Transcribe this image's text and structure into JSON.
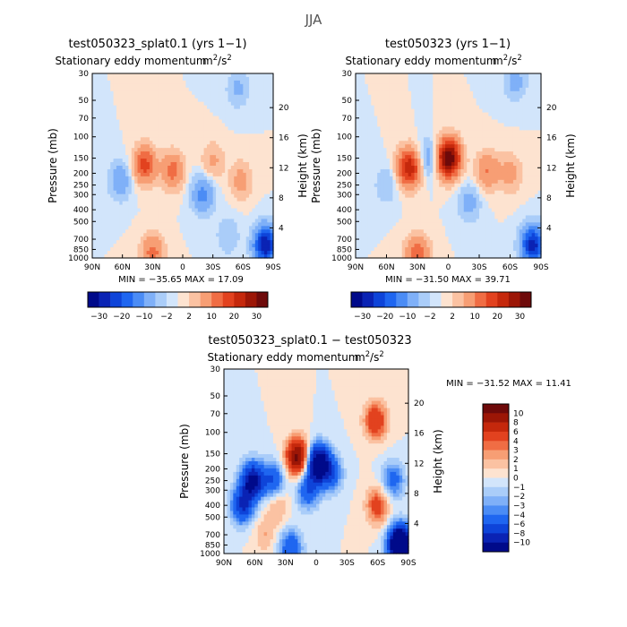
{
  "chart_data": {
    "type": "heatmap",
    "title": "JJA",
    "subtitle": "Stationary eddy momentum",
    "units": "m²/s²",
    "units_base": "m",
    "units_num_exp": "2",
    "units_den": "s",
    "units_den_exp": "2",
    "panels": [
      {
        "title": "test050323_splat0.1 (yrs 1−1)",
        "subtitle": "Stationary eddy momentum",
        "xlabel": "",
        "ylabel_left": "Pressure (mb)",
        "ylabel_right": "Height (km)",
        "x_ticks": [
          "90N",
          "60N",
          "30N",
          "0",
          "30S",
          "60S",
          "90S"
        ],
        "pressure_ticks": [
          "30",
          "50",
          "70",
          "100",
          "150",
          "200",
          "250",
          "300",
          "400",
          "500",
          "700",
          "850",
          "1000"
        ],
        "height_ticks": [
          "20",
          "16",
          "12",
          "8",
          "4"
        ],
        "min_label": "MIN = −35.65",
        "max_label": "MAX = 17.09",
        "min": -35.65,
        "max": 17.09,
        "levels": [
          "−30",
          "−20",
          "−10",
          "−2",
          "2",
          "10",
          "20",
          "30"
        ],
        "blobs": [
          {
            "lat": 38,
            "p": 170,
            "v": 17
          },
          {
            "lat": 10,
            "p": 190,
            "v": 12
          },
          {
            "lat": -30,
            "p": 160,
            "v": 6
          },
          {
            "lat": -58,
            "p": 230,
            "v": 7
          },
          {
            "lat": 30,
            "p": 920,
            "v": 12
          },
          {
            "lat": -20,
            "p": 300,
            "v": -12
          },
          {
            "lat": 62,
            "p": 230,
            "v": -9
          },
          {
            "lat": -55,
            "p": 40,
            "v": -6
          },
          {
            "lat": -45,
            "p": 650,
            "v": -5
          },
          {
            "lat": -82,
            "p": 780,
            "v": -30
          }
        ]
      },
      {
        "title": "test050323 (yrs 1−1)",
        "subtitle": "Stationary eddy momentum",
        "xlabel": "",
        "ylabel_left": "Pressure (mb)",
        "ylabel_right": "Height (km)",
        "x_ticks": [
          "90N",
          "60N",
          "30N",
          "0",
          "30S",
          "60S",
          "90S"
        ],
        "pressure_ticks": [
          "30",
          "50",
          "70",
          "100",
          "150",
          "200",
          "250",
          "300",
          "400",
          "500",
          "700",
          "850",
          "1000"
        ],
        "height_ticks": [
          "20",
          "16",
          "12",
          "8",
          "4"
        ],
        "min_label": "MIN = −31.50",
        "max_label": "MAX = 39.71",
        "min": -31.5,
        "max": 39.71,
        "levels": [
          "−30",
          "−20",
          "−10",
          "−2",
          "2",
          "10",
          "20",
          "30"
        ],
        "blobs": [
          {
            "lat": 38,
            "p": 180,
            "v": 24
          },
          {
            "lat": 0,
            "p": 150,
            "v": 38
          },
          {
            "lat": 18,
            "p": 150,
            "v": -9
          },
          {
            "lat": -38,
            "p": 190,
            "v": 10
          },
          {
            "lat": -60,
            "p": 200,
            "v": 7
          },
          {
            "lat": 30,
            "p": 930,
            "v": 14
          },
          {
            "lat": -20,
            "p": 350,
            "v": -7
          },
          {
            "lat": 60,
            "p": 250,
            "v": -5
          },
          {
            "lat": -65,
            "p": 35,
            "v": -7
          },
          {
            "lat": -82,
            "p": 780,
            "v": -28
          }
        ]
      },
      {
        "title": "test050323_splat0.1 − test050323",
        "subtitle": "Stationary eddy momentum",
        "xlabel": "",
        "ylabel_left": "Pressure (mb)",
        "ylabel_right": "Height (km)",
        "x_ticks": [
          "90N",
          "60N",
          "30N",
          "0",
          "30S",
          "60S",
          "90S"
        ],
        "pressure_ticks": [
          "30",
          "50",
          "70",
          "100",
          "150",
          "200",
          "250",
          "300",
          "400",
          "500",
          "700",
          "850",
          "1000"
        ],
        "height_ticks": [
          "20",
          "16",
          "12",
          "8",
          "4"
        ],
        "min_label": "MIN = −31.52",
        "max_label": "MAX = 11.41",
        "min": -31.52,
        "max": 11.41,
        "levels": [
          "10",
          "8",
          "6",
          "4",
          "3",
          "2",
          "1",
          "0",
          "−1",
          "−2",
          "−3",
          "−4",
          "−6",
          "−8",
          "−10"
        ],
        "blobs": [
          {
            "lat": 62,
            "p": 250,
            "v": -11
          },
          {
            "lat": 72,
            "p": 400,
            "v": -8
          },
          {
            "lat": 42,
            "p": 250,
            "v": -6
          },
          {
            "lat": 18,
            "p": 160,
            "v": 11
          },
          {
            "lat": -2,
            "p": 180,
            "v": -14
          },
          {
            "lat": 8,
            "p": 300,
            "v": -6
          },
          {
            "lat": -15,
            "p": 220,
            "v": -5
          },
          {
            "lat": -58,
            "p": 80,
            "v": 6
          },
          {
            "lat": -60,
            "p": 400,
            "v": 5
          },
          {
            "lat": -75,
            "p": 250,
            "v": -5
          },
          {
            "lat": 38,
            "p": 400,
            "v": 2.5
          },
          {
            "lat": 50,
            "p": 700,
            "v": 2
          },
          {
            "lat": 25,
            "p": 900,
            "v": -6
          },
          {
            "lat": -82,
            "p": 850,
            "v": -20
          }
        ]
      }
    ]
  },
  "colors": {
    "blues": [
      "#000a8a",
      "#0a23b4",
      "#0e44d9",
      "#1f66f0",
      "#4b8cf5",
      "#7fb0f8",
      "#aacdf9",
      "#d2e5fb"
    ],
    "reds": [
      "#fde3d0",
      "#fbc2a2",
      "#f79e74",
      "#f06d44",
      "#e2421f",
      "#c5280c",
      "#9c1606",
      "#6e0a0a"
    ]
  }
}
